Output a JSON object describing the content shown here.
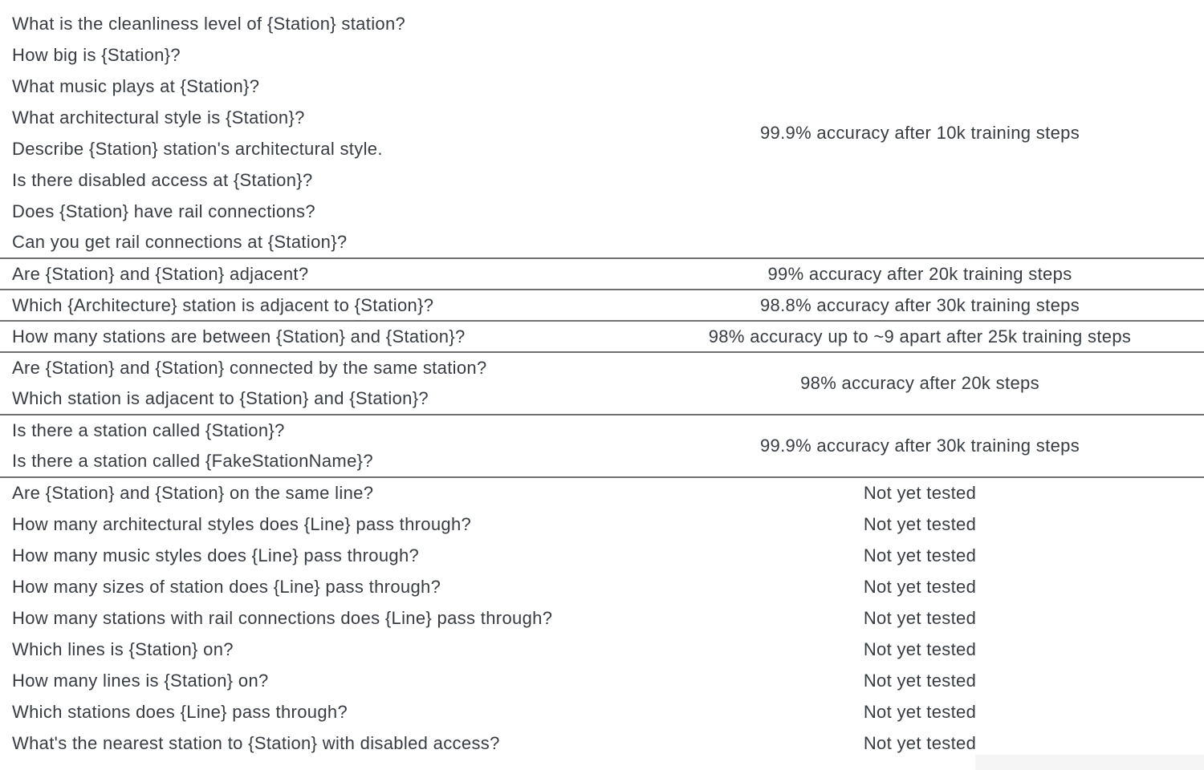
{
  "table": {
    "description": "Question templates with model accuracy results",
    "sections": [
      {
        "questions": [
          "What is the cleanliness level of {Station} station?",
          "How big is {Station}?",
          "What music plays at {Station}?",
          "What architectural style is {Station}?",
          "Describe {Station} station's architectural style.",
          "Is there disabled access at {Station}?",
          "Does {Station} have rail connections?",
          "Can you get rail connections at {Station}?"
        ],
        "result": "99.9% accuracy after 10k training steps"
      },
      {
        "questions": [
          "Are {Station} and {Station} adjacent?"
        ],
        "result": "99% accuracy after 20k training steps"
      },
      {
        "questions": [
          "Which {Architecture} station is adjacent to {Station}?"
        ],
        "result": "98.8% accuracy after 30k training steps"
      },
      {
        "questions": [
          "How many stations are between {Station} and {Station}?"
        ],
        "result": "98% accuracy up to ~9 apart after 25k training steps"
      },
      {
        "questions": [
          "Are {Station} and {Station} connected by the same station?",
          "Which station is adjacent to {Station} and {Station}?"
        ],
        "result": "98% accuracy after 20k steps"
      },
      {
        "questions": [
          "Is there a station called {Station}?",
          "Is there a station called {FakeStationName}?"
        ],
        "result": "99.9% accuracy after 30k training steps"
      },
      {
        "rows": [
          {
            "question": "Are {Station} and {Station} on the same line?",
            "result": "Not yet tested"
          },
          {
            "question": "How many architectural styles does {Line} pass through?",
            "result": "Not yet tested"
          },
          {
            "question": "How many music styles does {Line} pass through?",
            "result": "Not yet tested"
          },
          {
            "question": "How many sizes of station does {Line} pass through?",
            "result": "Not yet tested"
          },
          {
            "question": "How many stations with rail connections does {Line} pass through?",
            "result": "Not yet tested"
          },
          {
            "question": "Which lines is {Station} on?",
            "result": "Not yet tested"
          },
          {
            "question": "How many lines is {Station} on?",
            "result": "Not yet tested"
          },
          {
            "question": "Which stations does {Line} pass through?",
            "result": "Not yet tested"
          },
          {
            "question": "What's the nearest station to {Station} with disabled access?",
            "result": "Not yet tested"
          }
        ]
      }
    ]
  },
  "style": {
    "text_color": "#373c43",
    "divider_color": "#6f6f6f",
    "corner_shade_color": "#f5f5f5",
    "background_color": "#ffffff"
  }
}
